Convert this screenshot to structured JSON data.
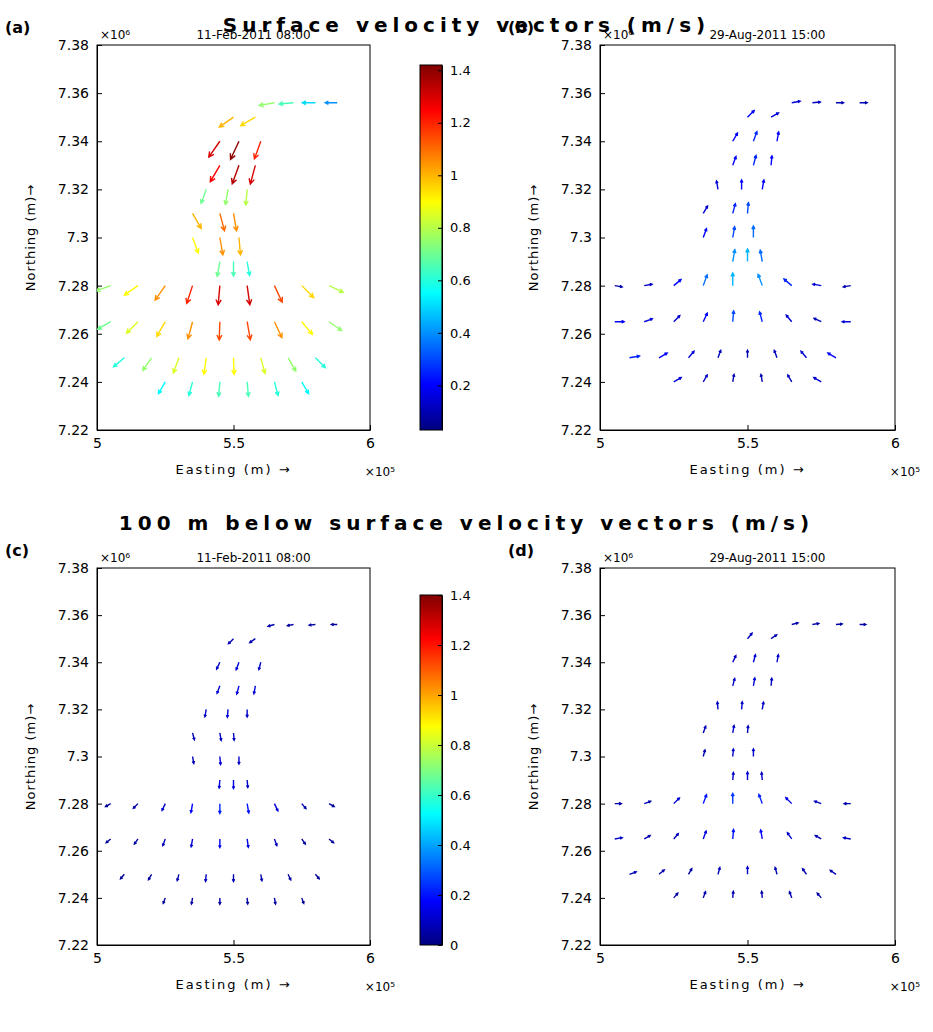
{
  "section_titles": [
    "Surface velocity vectors (m/s)",
    "100 m below surface velocity vectors (m/s)"
  ],
  "chart_data": [
    {
      "type": "quiver",
      "panel_label": "(a)",
      "title": "11-Feb-2011 08:00",
      "x_label": "Easting (m) →",
      "y_label": "Northing (m)→",
      "x_multiplier": "×10⁵",
      "y_multiplier": "×10⁶",
      "xlim": [
        5,
        6
      ],
      "ylim": [
        7.22,
        7.38
      ],
      "xticks": [
        5,
        5.5,
        6
      ],
      "yticks": [
        7.22,
        7.24,
        7.26,
        7.28,
        7.3,
        7.32,
        7.34,
        7.36,
        7.38
      ],
      "x": [
        5.25,
        5.35,
        5.45,
        5.55,
        5.65,
        5.75,
        5.1,
        5.2,
        5.3,
        5.4,
        5.5,
        5.6,
        5.7,
        5.8,
        5.05,
        5.15,
        5.25,
        5.35,
        5.45,
        5.55,
        5.65,
        5.75,
        5.85,
        5.05,
        5.15,
        5.25,
        5.35,
        5.45,
        5.55,
        5.65,
        5.75,
        5.85,
        5.45,
        5.5,
        5.55,
        5.35,
        5.45,
        5.52,
        5.35,
        5.45,
        5.5,
        5.4,
        5.48,
        5.55,
        5.45,
        5.52,
        5.58,
        5.45,
        5.52,
        5.6,
        5.5,
        5.58,
        5.65,
        5.72,
        5.8,
        5.88
      ],
      "y": [
        7.24,
        7.24,
        7.24,
        7.24,
        7.24,
        7.24,
        7.25,
        7.25,
        7.25,
        7.25,
        7.25,
        7.25,
        7.25,
        7.25,
        7.265,
        7.265,
        7.265,
        7.265,
        7.265,
        7.265,
        7.265,
        7.265,
        7.265,
        7.28,
        7.28,
        7.28,
        7.28,
        7.28,
        7.28,
        7.28,
        7.28,
        7.28,
        7.29,
        7.29,
        7.29,
        7.3,
        7.3,
        7.3,
        7.31,
        7.31,
        7.31,
        7.32,
        7.32,
        7.32,
        7.33,
        7.33,
        7.33,
        7.34,
        7.34,
        7.34,
        7.35,
        7.35,
        7.356,
        7.356,
        7.356,
        7.356
      ],
      "speed": [
        0.55,
        0.6,
        0.65,
        0.65,
        0.6,
        0.55,
        0.6,
        0.75,
        0.85,
        0.9,
        0.9,
        0.85,
        0.75,
        0.6,
        0.7,
        0.85,
        0.95,
        1.05,
        1.15,
        1.15,
        1.05,
        0.9,
        0.75,
        0.75,
        0.9,
        1.05,
        1.2,
        1.3,
        1.3,
        1.15,
        0.95,
        0.8,
        0.7,
        0.65,
        0.6,
        0.9,
        1.05,
        1.0,
        1.0,
        1.1,
        1.05,
        0.7,
        0.75,
        0.8,
        1.25,
        1.35,
        1.3,
        1.3,
        1.4,
        1.2,
        1.0,
        0.95,
        0.75,
        0.65,
        0.5,
        0.4
      ],
      "direction": [
        210,
        195,
        185,
        175,
        165,
        150,
        230,
        215,
        200,
        188,
        178,
        165,
        150,
        135,
        240,
        225,
        210,
        195,
        182,
        170,
        155,
        140,
        125,
        250,
        235,
        215,
        198,
        185,
        172,
        155,
        135,
        115,
        190,
        180,
        170,
        160,
        170,
        175,
        150,
        165,
        170,
        200,
        190,
        185,
        210,
        200,
        195,
        215,
        205,
        200,
        235,
        240,
        260,
        265,
        270,
        270
      ],
      "colorbar": {
        "range": [
          0.03,
          1.42
        ],
        "ticks": [
          0.2,
          0.4,
          0.6,
          0.8,
          1,
          1.2,
          1.4
        ]
      }
    },
    {
      "type": "quiver",
      "panel_label": "(b)",
      "title": "29-Aug-2011 15:00",
      "x_label": "Easting (m) →",
      "y_label": "Northing (m)→",
      "x_multiplier": "×10⁵",
      "y_multiplier": "×10⁶",
      "xlim": [
        5,
        6
      ],
      "ylim": [
        7.22,
        7.38
      ],
      "xticks": [
        5,
        5.5,
        6
      ],
      "yticks": [
        7.22,
        7.24,
        7.26,
        7.28,
        7.3,
        7.32,
        7.34,
        7.36,
        7.38
      ],
      "x": [
        5.25,
        5.35,
        5.45,
        5.55,
        5.65,
        5.75,
        5.1,
        5.2,
        5.3,
        5.4,
        5.5,
        5.6,
        5.7,
        5.8,
        5.05,
        5.15,
        5.25,
        5.35,
        5.45,
        5.55,
        5.65,
        5.75,
        5.85,
        5.05,
        5.15,
        5.25,
        5.35,
        5.45,
        5.55,
        5.65,
        5.75,
        5.85,
        5.45,
        5.5,
        5.55,
        5.35,
        5.45,
        5.52,
        5.35,
        5.45,
        5.5,
        5.4,
        5.48,
        5.55,
        5.45,
        5.52,
        5.58,
        5.45,
        5.52,
        5.6,
        5.5,
        5.58,
        5.65,
        5.72,
        5.8,
        5.88
      ],
      "y": [
        7.24,
        7.24,
        7.24,
        7.24,
        7.24,
        7.24,
        7.25,
        7.25,
        7.25,
        7.25,
        7.25,
        7.25,
        7.25,
        7.25,
        7.265,
        7.265,
        7.265,
        7.265,
        7.265,
        7.265,
        7.265,
        7.265,
        7.265,
        7.28,
        7.28,
        7.28,
        7.28,
        7.28,
        7.28,
        7.28,
        7.28,
        7.28,
        7.29,
        7.29,
        7.29,
        7.3,
        7.3,
        7.3,
        7.31,
        7.31,
        7.31,
        7.32,
        7.32,
        7.32,
        7.33,
        7.33,
        7.33,
        7.34,
        7.34,
        7.34,
        7.35,
        7.35,
        7.356,
        7.356,
        7.356,
        7.356
      ],
      "speed": [
        0.15,
        0.12,
        0.1,
        0.1,
        0.12,
        0.15,
        0.25,
        0.2,
        0.15,
        0.12,
        0.1,
        0.12,
        0.15,
        0.2,
        0.2,
        0.15,
        0.15,
        0.2,
        0.3,
        0.25,
        0.15,
        0.12,
        0.15,
        0.1,
        0.12,
        0.2,
        0.35,
        0.45,
        0.4,
        0.25,
        0.15,
        0.1,
        0.4,
        0.45,
        0.35,
        0.2,
        0.3,
        0.35,
        0.15,
        0.25,
        0.3,
        0.15,
        0.2,
        0.2,
        0.2,
        0.25,
        0.2,
        0.2,
        0.25,
        0.2,
        0.2,
        0.15,
        0.15,
        0.12,
        0.1,
        0.1
      ],
      "direction": [
        60,
        30,
        10,
        350,
        330,
        300,
        80,
        60,
        40,
        20,
        0,
        340,
        320,
        300,
        90,
        70,
        45,
        25,
        5,
        345,
        320,
        295,
        270,
        100,
        80,
        50,
        20,
        0,
        340,
        310,
        280,
        260,
        10,
        0,
        350,
        20,
        10,
        0,
        30,
        15,
        5,
        350,
        0,
        10,
        20,
        15,
        5,
        30,
        20,
        10,
        45,
        60,
        80,
        85,
        90,
        90
      ]
    },
    {
      "type": "quiver",
      "panel_label": "(c)",
      "title": "11-Feb-2011 08:00",
      "x_label": "Easting (m) →",
      "y_label": "Northing (m)→",
      "x_multiplier": "×10⁵",
      "y_multiplier": "×10⁶",
      "xlim": [
        5,
        6
      ],
      "ylim": [
        7.22,
        7.38
      ],
      "xticks": [
        5,
        5.5,
        6
      ],
      "yticks": [
        7.22,
        7.24,
        7.26,
        7.28,
        7.3,
        7.32,
        7.34,
        7.36,
        7.38
      ],
      "x": [
        5.25,
        5.35,
        5.45,
        5.55,
        5.65,
        5.75,
        5.1,
        5.2,
        5.3,
        5.4,
        5.5,
        5.6,
        5.7,
        5.8,
        5.05,
        5.15,
        5.25,
        5.35,
        5.45,
        5.55,
        5.65,
        5.75,
        5.85,
        5.05,
        5.15,
        5.25,
        5.35,
        5.45,
        5.55,
        5.65,
        5.75,
        5.85,
        5.45,
        5.5,
        5.55,
        5.35,
        5.45,
        5.52,
        5.35,
        5.45,
        5.5,
        5.4,
        5.48,
        5.55,
        5.45,
        5.52,
        5.58,
        5.45,
        5.52,
        5.6,
        5.5,
        5.58,
        5.65,
        5.72,
        5.8,
        5.88
      ],
      "y": [
        7.24,
        7.24,
        7.24,
        7.24,
        7.24,
        7.24,
        7.25,
        7.25,
        7.25,
        7.25,
        7.25,
        7.25,
        7.25,
        7.25,
        7.265,
        7.265,
        7.265,
        7.265,
        7.265,
        7.265,
        7.265,
        7.265,
        7.265,
        7.28,
        7.28,
        7.28,
        7.28,
        7.28,
        7.28,
        7.28,
        7.28,
        7.28,
        7.29,
        7.29,
        7.29,
        7.3,
        7.3,
        7.3,
        7.31,
        7.31,
        7.31,
        7.32,
        7.32,
        7.32,
        7.33,
        7.33,
        7.33,
        7.34,
        7.34,
        7.34,
        7.35,
        7.35,
        7.356,
        7.356,
        7.356,
        7.356
      ],
      "speed": [
        0.04,
        0.05,
        0.05,
        0.05,
        0.05,
        0.04,
        0.04,
        0.05,
        0.06,
        0.08,
        0.08,
        0.06,
        0.05,
        0.04,
        0.04,
        0.05,
        0.08,
        0.12,
        0.15,
        0.14,
        0.08,
        0.05,
        0.04,
        0.04,
        0.06,
        0.1,
        0.18,
        0.22,
        0.2,
        0.12,
        0.06,
        0.04,
        0.12,
        0.14,
        0.1,
        0.08,
        0.12,
        0.1,
        0.08,
        0.1,
        0.09,
        0.1,
        0.12,
        0.1,
        0.12,
        0.14,
        0.12,
        0.1,
        0.12,
        0.1,
        0.08,
        0.07,
        0.06,
        0.05,
        0.05,
        0.04
      ],
      "direction": [
        200,
        190,
        180,
        175,
        170,
        160,
        220,
        210,
        195,
        185,
        180,
        170,
        155,
        140,
        230,
        215,
        200,
        190,
        180,
        172,
        160,
        145,
        130,
        240,
        225,
        205,
        190,
        180,
        170,
        155,
        140,
        120,
        185,
        180,
        175,
        170,
        175,
        180,
        165,
        170,
        175,
        190,
        185,
        180,
        200,
        195,
        190,
        205,
        200,
        195,
        225,
        235,
        255,
        260,
        265,
        270
      ],
      "colorbar": {
        "range": [
          0,
          1.4
        ],
        "ticks": [
          0,
          0.2,
          0.4,
          0.6,
          0.8,
          1,
          1.2,
          1.4
        ]
      }
    },
    {
      "type": "quiver",
      "panel_label": "(d)",
      "title": "29-Aug-2011 15:00",
      "x_label": "Easting (m) →",
      "y_label": "Northing (m)→",
      "x_multiplier": "×10⁵",
      "y_multiplier": "×10⁶",
      "xlim": [
        5,
        6
      ],
      "ylim": [
        7.22,
        7.38
      ],
      "xticks": [
        5,
        5.5,
        6
      ],
      "yticks": [
        7.22,
        7.24,
        7.26,
        7.28,
        7.3,
        7.32,
        7.34,
        7.36,
        7.38
      ],
      "x": [
        5.25,
        5.35,
        5.45,
        5.55,
        5.65,
        5.75,
        5.1,
        5.2,
        5.3,
        5.4,
        5.5,
        5.6,
        5.7,
        5.8,
        5.05,
        5.15,
        5.25,
        5.35,
        5.45,
        5.55,
        5.65,
        5.75,
        5.85,
        5.05,
        5.15,
        5.25,
        5.35,
        5.45,
        5.55,
        5.65,
        5.75,
        5.85,
        5.45,
        5.5,
        5.55,
        5.35,
        5.45,
        5.52,
        5.35,
        5.45,
        5.5,
        5.4,
        5.48,
        5.55,
        5.45,
        5.52,
        5.58,
        5.45,
        5.52,
        5.6,
        5.5,
        5.58,
        5.65,
        5.72,
        5.8,
        5.88
      ],
      "y": [
        7.24,
        7.24,
        7.24,
        7.24,
        7.24,
        7.24,
        7.25,
        7.25,
        7.25,
        7.25,
        7.25,
        7.25,
        7.25,
        7.25,
        7.265,
        7.265,
        7.265,
        7.265,
        7.265,
        7.265,
        7.265,
        7.265,
        7.265,
        7.28,
        7.28,
        7.28,
        7.28,
        7.28,
        7.28,
        7.28,
        7.28,
        7.28,
        7.29,
        7.29,
        7.29,
        7.3,
        7.3,
        7.3,
        7.31,
        7.31,
        7.31,
        7.32,
        7.32,
        7.32,
        7.33,
        7.33,
        7.33,
        7.34,
        7.34,
        7.34,
        7.35,
        7.35,
        7.356,
        7.356,
        7.356,
        7.356
      ],
      "speed": [
        0.05,
        0.06,
        0.06,
        0.06,
        0.06,
        0.05,
        0.08,
        0.07,
        0.06,
        0.08,
        0.1,
        0.08,
        0.07,
        0.08,
        0.1,
        0.07,
        0.08,
        0.14,
        0.2,
        0.18,
        0.1,
        0.07,
        0.09,
        0.06,
        0.07,
        0.12,
        0.2,
        0.25,
        0.22,
        0.14,
        0.08,
        0.06,
        0.1,
        0.12,
        0.1,
        0.07,
        0.1,
        0.1,
        0.08,
        0.1,
        0.08,
        0.09,
        0.1,
        0.09,
        0.1,
        0.12,
        0.1,
        0.09,
        0.11,
        0.1,
        0.08,
        0.07,
        0.06,
        0.06,
        0.05,
        0.05
      ],
      "direction": [
        40,
        20,
        5,
        355,
        340,
        320,
        70,
        50,
        30,
        15,
        0,
        345,
        325,
        305,
        80,
        60,
        40,
        20,
        5,
        350,
        325,
        300,
        280,
        90,
        70,
        45,
        20,
        0,
        340,
        315,
        290,
        270,
        5,
        0,
        355,
        15,
        5,
        0,
        20,
        10,
        5,
        355,
        5,
        10,
        15,
        10,
        5,
        25,
        15,
        10,
        40,
        55,
        75,
        80,
        85,
        90
      ]
    }
  ]
}
